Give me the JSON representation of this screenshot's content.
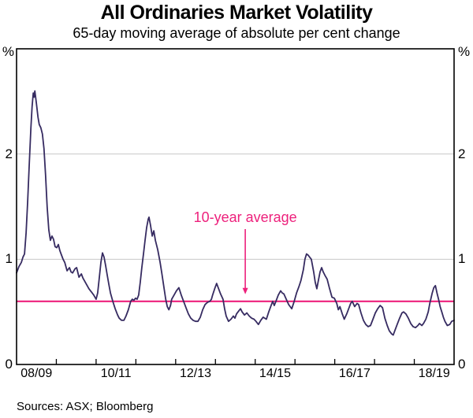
{
  "page": {
    "title": "All Ordinaries Market Volatility",
    "subtitle": "65-day moving average of absolute per cent change",
    "footer": "Sources: ASX; Bloomberg"
  },
  "chart_data": {
    "type": "line",
    "title": "All Ordinaries Market Volatility",
    "subtitle": "65-day moving average of absolute per cent change",
    "x_axis": {
      "range_years": [
        2008.5,
        2019.5
      ],
      "tick_years": [
        2009.5,
        2010.5,
        2011.5,
        2012.5,
        2013.5,
        2014.5,
        2015.5,
        2016.5,
        2017.5,
        2018.5
      ],
      "labels": [
        "08/09",
        "10/11",
        "12/13",
        "14/15",
        "16/17",
        "18/19"
      ],
      "label_center_years": [
        2009.0,
        2011.0,
        2013.0,
        2015.0,
        2017.0,
        2019.0
      ]
    },
    "y_axis": {
      "range": [
        0,
        3
      ],
      "tick_values": [
        2,
        1,
        0
      ],
      "tick_labels": [
        "2",
        "1",
        "0"
      ],
      "gridline_values": [
        1,
        2
      ],
      "unit_label": "%"
    },
    "reference_line": {
      "label": "10-year average",
      "value": 0.6,
      "color": "#ED217C",
      "label_center_year": 2014.25,
      "arrow_year": 2014.25
    },
    "colors": {
      "grid": "#C8C8C8",
      "frame": "#000000"
    },
    "series": [
      {
        "name": "65-day moving average of absolute per cent change",
        "color": "#362B61",
        "points": [
          [
            2008.5,
            0.87
          ],
          [
            2008.56,
            0.93
          ],
          [
            2008.62,
            0.97
          ],
          [
            2008.66,
            1.02
          ],
          [
            2008.7,
            1.05
          ],
          [
            2008.74,
            1.25
          ],
          [
            2008.78,
            1.55
          ],
          [
            2008.82,
            1.9
          ],
          [
            2008.86,
            2.25
          ],
          [
            2008.89,
            2.45
          ],
          [
            2008.92,
            2.58
          ],
          [
            2008.94,
            2.54
          ],
          [
            2008.96,
            2.6
          ],
          [
            2009.0,
            2.48
          ],
          [
            2009.04,
            2.35
          ],
          [
            2009.07,
            2.28
          ],
          [
            2009.11,
            2.25
          ],
          [
            2009.15,
            2.19
          ],
          [
            2009.19,
            2.05
          ],
          [
            2009.23,
            1.8
          ],
          [
            2009.27,
            1.5
          ],
          [
            2009.31,
            1.28
          ],
          [
            2009.35,
            1.18
          ],
          [
            2009.39,
            1.22
          ],
          [
            2009.43,
            1.19
          ],
          [
            2009.47,
            1.12
          ],
          [
            2009.51,
            1.11
          ],
          [
            2009.55,
            1.14
          ],
          [
            2009.59,
            1.08
          ],
          [
            2009.63,
            1.04
          ],
          [
            2009.67,
            1.0
          ],
          [
            2009.71,
            0.97
          ],
          [
            2009.77,
            0.89
          ],
          [
            2009.83,
            0.92
          ],
          [
            2009.87,
            0.88
          ],
          [
            2009.91,
            0.87
          ],
          [
            2009.97,
            0.91
          ],
          [
            2010.01,
            0.92
          ],
          [
            2010.07,
            0.83
          ],
          [
            2010.13,
            0.86
          ],
          [
            2010.17,
            0.82
          ],
          [
            2010.2,
            0.8
          ],
          [
            2010.26,
            0.76
          ],
          [
            2010.32,
            0.72
          ],
          [
            2010.36,
            0.7
          ],
          [
            2010.4,
            0.68
          ],
          [
            2010.44,
            0.66
          ],
          [
            2010.5,
            0.62
          ],
          [
            2010.54,
            0.68
          ],
          [
            2010.58,
            0.82
          ],
          [
            2010.62,
            0.97
          ],
          [
            2010.66,
            1.06
          ],
          [
            2010.7,
            1.02
          ],
          [
            2010.74,
            0.94
          ],
          [
            2010.78,
            0.85
          ],
          [
            2010.82,
            0.76
          ],
          [
            2010.86,
            0.68
          ],
          [
            2010.92,
            0.6
          ],
          [
            2010.98,
            0.53
          ],
          [
            2011.04,
            0.47
          ],
          [
            2011.08,
            0.44
          ],
          [
            2011.14,
            0.42
          ],
          [
            2011.2,
            0.42
          ],
          [
            2011.25,
            0.46
          ],
          [
            2011.31,
            0.52
          ],
          [
            2011.37,
            0.6
          ],
          [
            2011.41,
            0.62
          ],
          [
            2011.45,
            0.61
          ],
          [
            2011.49,
            0.63
          ],
          [
            2011.53,
            0.62
          ],
          [
            2011.57,
            0.66
          ],
          [
            2011.61,
            0.78
          ],
          [
            2011.65,
            0.92
          ],
          [
            2011.69,
            1.05
          ],
          [
            2011.73,
            1.18
          ],
          [
            2011.77,
            1.3
          ],
          [
            2011.81,
            1.38
          ],
          [
            2011.83,
            1.4
          ],
          [
            2011.87,
            1.32
          ],
          [
            2011.91,
            1.22
          ],
          [
            2011.95,
            1.27
          ],
          [
            2011.99,
            1.18
          ],
          [
            2012.05,
            1.09
          ],
          [
            2012.11,
            0.97
          ],
          [
            2012.15,
            0.87
          ],
          [
            2012.21,
            0.72
          ],
          [
            2012.25,
            0.62
          ],
          [
            2012.29,
            0.55
          ],
          [
            2012.33,
            0.52
          ],
          [
            2012.37,
            0.56
          ],
          [
            2012.4,
            0.62
          ],
          [
            2012.46,
            0.66
          ],
          [
            2012.52,
            0.7
          ],
          [
            2012.58,
            0.73
          ],
          [
            2012.64,
            0.66
          ],
          [
            2012.7,
            0.6
          ],
          [
            2012.76,
            0.54
          ],
          [
            2012.82,
            0.48
          ],
          [
            2012.88,
            0.44
          ],
          [
            2012.94,
            0.42
          ],
          [
            2013.0,
            0.41
          ],
          [
            2013.06,
            0.41
          ],
          [
            2013.12,
            0.45
          ],
          [
            2013.18,
            0.52
          ],
          [
            2013.24,
            0.57
          ],
          [
            2013.3,
            0.59
          ],
          [
            2013.36,
            0.6
          ],
          [
            2013.4,
            0.62
          ],
          [
            2013.43,
            0.66
          ],
          [
            2013.49,
            0.73
          ],
          [
            2013.53,
            0.77
          ],
          [
            2013.57,
            0.73
          ],
          [
            2013.63,
            0.67
          ],
          [
            2013.69,
            0.62
          ],
          [
            2013.73,
            0.53
          ],
          [
            2013.77,
            0.46
          ],
          [
            2013.83,
            0.41
          ],
          [
            2013.89,
            0.43
          ],
          [
            2013.95,
            0.46
          ],
          [
            2013.99,
            0.44
          ],
          [
            2014.03,
            0.48
          ],
          [
            2014.09,
            0.51
          ],
          [
            2014.13,
            0.53
          ],
          [
            2014.17,
            0.5
          ],
          [
            2014.23,
            0.47
          ],
          [
            2014.29,
            0.49
          ],
          [
            2014.35,
            0.46
          ],
          [
            2014.41,
            0.44
          ],
          [
            2014.47,
            0.43
          ],
          [
            2014.52,
            0.41
          ],
          [
            2014.58,
            0.38
          ],
          [
            2014.64,
            0.42
          ],
          [
            2014.7,
            0.45
          ],
          [
            2014.74,
            0.44
          ],
          [
            2014.78,
            0.43
          ],
          [
            2014.84,
            0.5
          ],
          [
            2014.9,
            0.56
          ],
          [
            2014.94,
            0.6
          ],
          [
            2014.98,
            0.56
          ],
          [
            2015.02,
            0.6
          ],
          [
            2015.08,
            0.66
          ],
          [
            2015.14,
            0.7
          ],
          [
            2015.18,
            0.68
          ],
          [
            2015.22,
            0.67
          ],
          [
            2015.28,
            0.62
          ],
          [
            2015.34,
            0.57
          ],
          [
            2015.38,
            0.55
          ],
          [
            2015.42,
            0.53
          ],
          [
            2015.48,
            0.6
          ],
          [
            2015.54,
            0.68
          ],
          [
            2015.6,
            0.74
          ],
          [
            2015.65,
            0.8
          ],
          [
            2015.71,
            0.9
          ],
          [
            2015.75,
            1.0
          ],
          [
            2015.79,
            1.05
          ],
          [
            2015.83,
            1.04
          ],
          [
            2015.87,
            1.02
          ],
          [
            2015.91,
            1.0
          ],
          [
            2015.97,
            0.88
          ],
          [
            2016.01,
            0.78
          ],
          [
            2016.05,
            0.72
          ],
          [
            2016.09,
            0.8
          ],
          [
            2016.13,
            0.88
          ],
          [
            2016.17,
            0.92
          ],
          [
            2016.21,
            0.88
          ],
          [
            2016.25,
            0.85
          ],
          [
            2016.31,
            0.81
          ],
          [
            2016.37,
            0.72
          ],
          [
            2016.43,
            0.64
          ],
          [
            2016.49,
            0.63
          ],
          [
            2016.55,
            0.58
          ],
          [
            2016.59,
            0.52
          ],
          [
            2016.63,
            0.55
          ],
          [
            2016.69,
            0.48
          ],
          [
            2016.74,
            0.43
          ],
          [
            2016.8,
            0.48
          ],
          [
            2016.86,
            0.54
          ],
          [
            2016.9,
            0.58
          ],
          [
            2016.94,
            0.6
          ],
          [
            2017.0,
            0.55
          ],
          [
            2017.06,
            0.58
          ],
          [
            2017.1,
            0.57
          ],
          [
            2017.16,
            0.49
          ],
          [
            2017.22,
            0.42
          ],
          [
            2017.28,
            0.38
          ],
          [
            2017.34,
            0.36
          ],
          [
            2017.4,
            0.37
          ],
          [
            2017.46,
            0.43
          ],
          [
            2017.52,
            0.49
          ],
          [
            2017.58,
            0.53
          ],
          [
            2017.64,
            0.56
          ],
          [
            2017.7,
            0.54
          ],
          [
            2017.76,
            0.44
          ],
          [
            2017.82,
            0.37
          ],
          [
            2017.87,
            0.32
          ],
          [
            2017.93,
            0.29
          ],
          [
            2017.97,
            0.28
          ],
          [
            2018.01,
            0.32
          ],
          [
            2018.07,
            0.38
          ],
          [
            2018.13,
            0.44
          ],
          [
            2018.19,
            0.49
          ],
          [
            2018.23,
            0.5
          ],
          [
            2018.29,
            0.48
          ],
          [
            2018.35,
            0.44
          ],
          [
            2018.41,
            0.39
          ],
          [
            2018.47,
            0.36
          ],
          [
            2018.53,
            0.35
          ],
          [
            2018.59,
            0.37
          ],
          [
            2018.63,
            0.39
          ],
          [
            2018.69,
            0.37
          ],
          [
            2018.73,
            0.39
          ],
          [
            2018.79,
            0.43
          ],
          [
            2018.85,
            0.5
          ],
          [
            2018.89,
            0.58
          ],
          [
            2018.95,
            0.68
          ],
          [
            2018.99,
            0.73
          ],
          [
            2019.03,
            0.75
          ],
          [
            2019.07,
            0.68
          ],
          [
            2019.11,
            0.62
          ],
          [
            2019.15,
            0.55
          ],
          [
            2019.19,
            0.5
          ],
          [
            2019.23,
            0.45
          ],
          [
            2019.27,
            0.41
          ],
          [
            2019.33,
            0.37
          ],
          [
            2019.39,
            0.38
          ],
          [
            2019.44,
            0.41
          ],
          [
            2019.5,
            0.42
          ]
        ]
      }
    ]
  }
}
